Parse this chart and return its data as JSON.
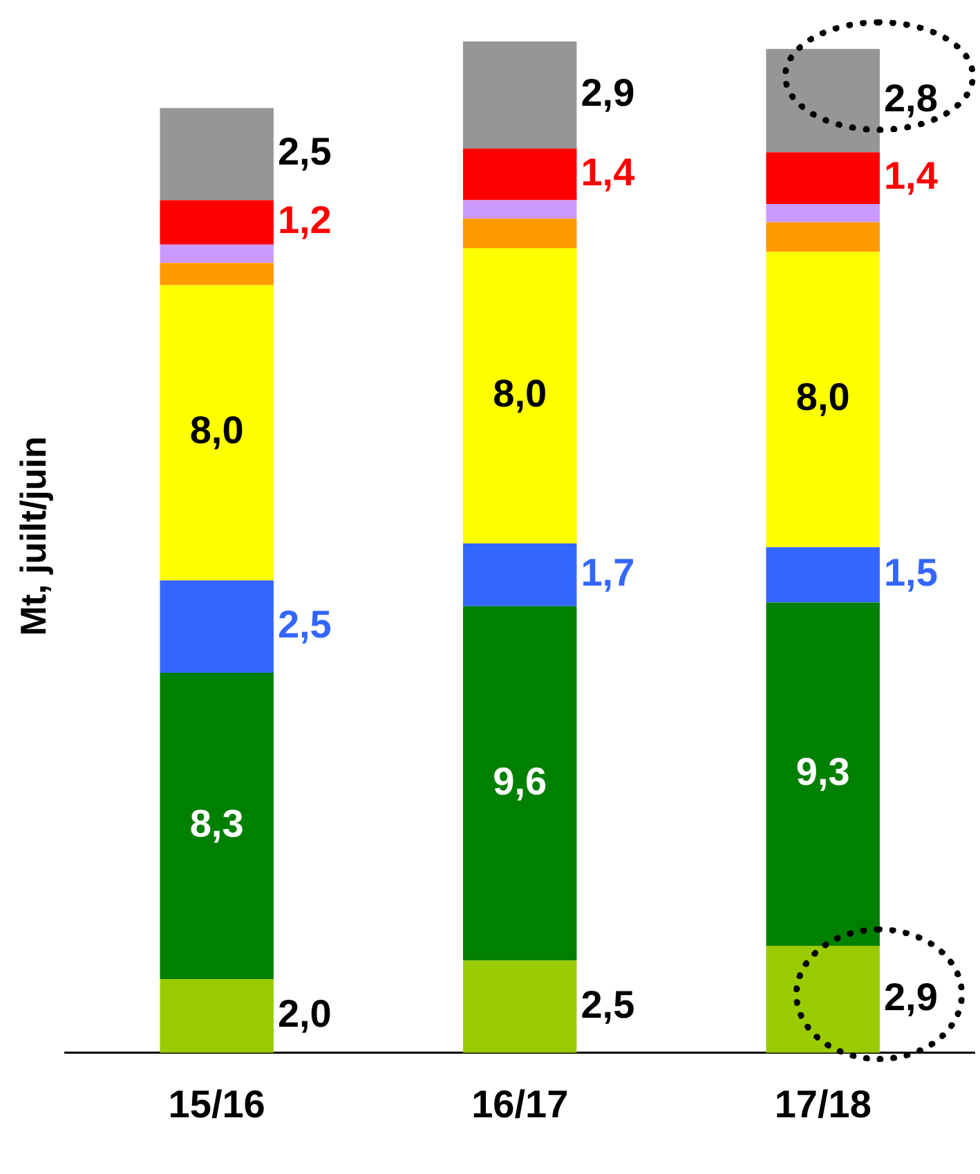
{
  "chart_data": {
    "type": "bar",
    "stacked": true,
    "ylabel": "Mt, juilt/juin",
    "categories": [
      "15/16",
      "16/17",
      "17/18"
    ],
    "ylim": [
      0,
      28
    ],
    "grid": false,
    "series": [
      {
        "color": "#99cc00",
        "values": [
          2.0,
          2.5,
          2.9
        ],
        "value_labels": [
          "2,0",
          "2,5",
          "2,9"
        ]
      },
      {
        "color": "#008000",
        "values": [
          8.3,
          9.6,
          9.3
        ],
        "value_labels": [
          "8,3",
          "9,6",
          "9,3"
        ]
      },
      {
        "color": "#3366ff",
        "values": [
          2.5,
          1.7,
          1.5
        ],
        "value_labels": [
          "2,5",
          "1,7",
          "1,5"
        ]
      },
      {
        "color": "#ffff00",
        "values": [
          8.0,
          8.0,
          8.0
        ],
        "value_labels": [
          "8,0",
          "8,0",
          "8,0"
        ]
      },
      {
        "color": "#ff9900",
        "values": [
          0.6,
          0.8,
          0.8
        ],
        "value_labels": [
          null,
          null,
          null
        ]
      },
      {
        "color": "#cc99ff",
        "values": [
          0.5,
          0.5,
          0.5
        ],
        "value_labels": [
          null,
          null,
          null
        ]
      },
      {
        "color": "#ff0000",
        "values": [
          1.2,
          1.4,
          1.4
        ],
        "value_labels": [
          "1,2",
          "1,4",
          "1,4"
        ]
      },
      {
        "color": "#969696",
        "values": [
          2.5,
          2.9,
          2.8
        ],
        "value_labels": [
          "2,5",
          "2,9",
          "2,8"
        ]
      }
    ]
  }
}
